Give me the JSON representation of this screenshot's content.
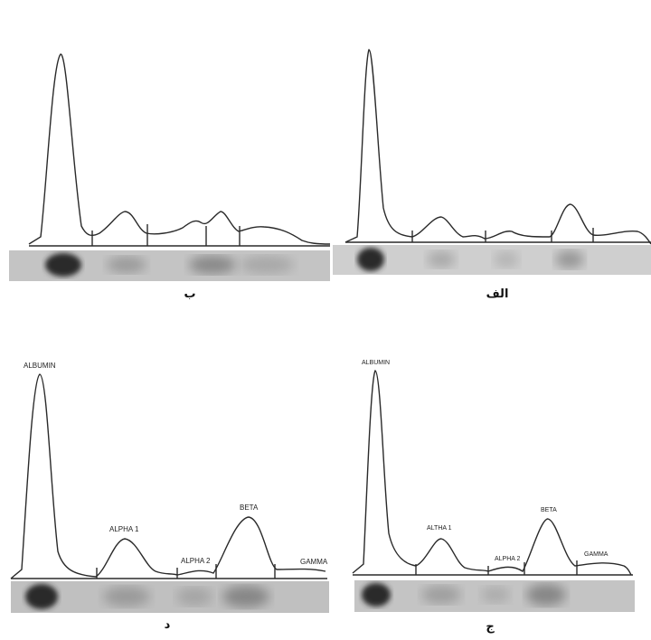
{
  "panels": [
    {
      "caption": "ب",
      "labels": []
    },
    {
      "caption": "الف",
      "labels": []
    },
    {
      "caption": "د",
      "labels": [
        "ALBUMIN",
        "ALPHA 1",
        "ALPHA 2",
        "BETA",
        "GAMMA"
      ]
    },
    {
      "caption": "ج",
      "labels": [
        "ALBUMIN",
        "ALTHA 1",
        "ALPHA 2",
        "BETA",
        "GAMMA"
      ]
    }
  ],
  "colors": {
    "line": "#2a2a2a",
    "strip": "#bdbdbd",
    "band": "#3a3a3a"
  }
}
